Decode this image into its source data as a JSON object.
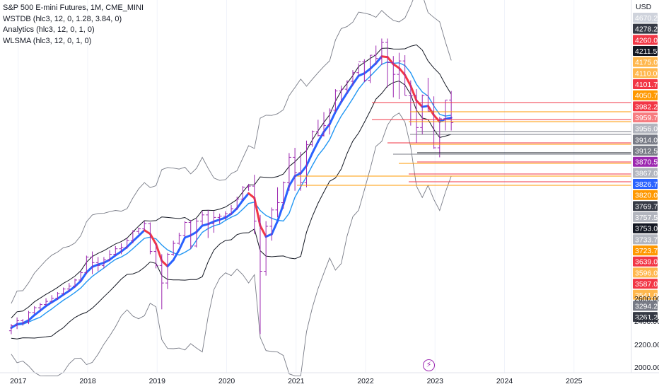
{
  "legend": {
    "symbol_line": "S&P 500 E-mini Futures, 1M, CME_MINI",
    "indicators": [
      "WSTDB (hlc3, 12, 0, 1.28, 3.84, 0)",
      "Analytics (hlc3, 12, 0, 1, 0)",
      "WLSMA (hlc3, 12, 0, 1, 0)"
    ]
  },
  "price_axis": {
    "currency": "USD",
    "ticks": [
      "2000.00",
      "2200.00",
      "2400.00",
      "2600.00"
    ]
  },
  "time_axis": {
    "ticks": [
      "2017",
      "2018",
      "2019",
      "2020",
      "2021",
      "2022",
      "2023",
      "2024",
      "2025"
    ]
  },
  "price_tags": [
    {
      "label": "4670.25",
      "bg": "#cfd3dc",
      "fg": "#ffffff"
    },
    {
      "label": "4278.25",
      "bg": "#363a45",
      "fg": "#ffffff"
    },
    {
      "label": "4260.00",
      "bg": "#f23645",
      "fg": "#ffffff"
    },
    {
      "label": "4211.50",
      "bg": "#131722",
      "fg": "#ffffff"
    },
    {
      "label": "4175.00",
      "bg": "#ffb74d",
      "fg": "#ffffff"
    },
    {
      "label": "4110.00",
      "bg": "#ffb74d",
      "fg": "#ffffff"
    },
    {
      "label": "4101.75",
      "bg": "#f23645",
      "fg": "#ffffff"
    },
    {
      "label": "4050.75",
      "bg": "#ff9800",
      "fg": "#ffffff"
    },
    {
      "label": "3982.25",
      "bg": "#f23645",
      "fg": "#ffffff"
    },
    {
      "label": "3959.75",
      "bg": "#f77c80",
      "fg": "#ffffff"
    },
    {
      "label": "3956.00",
      "bg": "#b2b5be",
      "fg": "#ffffff"
    },
    {
      "label": "3914.00",
      "bg": "#787b86",
      "fg": "#ffffff"
    },
    {
      "label": "3912.50",
      "bg": "#787b86",
      "fg": "#ffffff"
    },
    {
      "label": "3870.50",
      "bg": "#9c27b0",
      "fg": "#ffffff"
    },
    {
      "label": "3867.00",
      "bg": "#b2b5be",
      "fg": "#ffffff"
    },
    {
      "label": "3826.75",
      "bg": "#2962ff",
      "fg": "#ffffff"
    },
    {
      "label": "3820.00",
      "bg": "#ff9800",
      "fg": "#ffffff"
    },
    {
      "label": "3769.75",
      "bg": "#363a45",
      "fg": "#ffffff"
    },
    {
      "label": "3757.50",
      "bg": "#b2b5be",
      "fg": "#ffffff"
    },
    {
      "label": "3753.00",
      "bg": "#131722",
      "fg": "#ffffff"
    },
    {
      "label": "3733.75",
      "bg": "#b2b5be",
      "fg": "#ffffff"
    },
    {
      "label": "3723.75",
      "bg": "#ff9800",
      "fg": "#ffffff"
    },
    {
      "label": "3639.00",
      "bg": "#f23645",
      "fg": "#ffffff"
    },
    {
      "label": "3596.00",
      "bg": "#ffb74d",
      "fg": "#ffffff"
    },
    {
      "label": "3587.00",
      "bg": "#f23645",
      "fg": "#ffffff"
    },
    {
      "label": "3541.00",
      "bg": "#ffb74d",
      "fg": "#ffffff"
    },
    {
      "label": "3294.25",
      "bg": "#787b86",
      "fg": "#ffffff"
    },
    {
      "label": "3261.25",
      "bg": "#363a45",
      "fg": "#ffffff"
    }
  ],
  "event_icon": {
    "name": "lightning-bolt-icon",
    "glyph": "⚡"
  },
  "colors": {
    "bars": "#9c27b0",
    "wlsma_up": "#2962ff",
    "wlsma_down": "#f23645",
    "analytics": "#2196f3",
    "bands": "#131722",
    "bands_outer": "#787b86",
    "level_red": "#f23645",
    "level_orange": "#ff9800",
    "level_gray": "#787b86"
  },
  "chart_data": {
    "type": "ohlc",
    "title": "S&P 500 E-mini Futures, 1M, CME_MINI",
    "currency": "USD",
    "x_start": 2016.9,
    "x_step_years": 0.08333,
    "ohlc_bars": [
      {
        "o": 2200,
        "h": 2240,
        "l": 2180,
        "c": 2230
      },
      {
        "o": 2230,
        "h": 2280,
        "l": 2210,
        "c": 2260
      },
      {
        "o": 2260,
        "h": 2270,
        "l": 2230,
        "c": 2250
      },
      {
        "o": 2250,
        "h": 2320,
        "l": 2240,
        "c": 2310
      },
      {
        "o": 2310,
        "h": 2350,
        "l": 2300,
        "c": 2340
      },
      {
        "o": 2340,
        "h": 2370,
        "l": 2320,
        "c": 2360
      },
      {
        "o": 2360,
        "h": 2400,
        "l": 2350,
        "c": 2380
      },
      {
        "o": 2380,
        "h": 2420,
        "l": 2370,
        "c": 2400
      },
      {
        "o": 2400,
        "h": 2440,
        "l": 2390,
        "c": 2430
      },
      {
        "o": 2430,
        "h": 2470,
        "l": 2420,
        "c": 2460
      },
      {
        "o": 2460,
        "h": 2500,
        "l": 2440,
        "c": 2480
      },
      {
        "o": 2480,
        "h": 2530,
        "l": 2470,
        "c": 2520
      },
      {
        "o": 2520,
        "h": 2580,
        "l": 2510,
        "c": 2570
      },
      {
        "o": 2570,
        "h": 2690,
        "l": 2560,
        "c": 2680
      },
      {
        "o": 2680,
        "h": 2720,
        "l": 2560,
        "c": 2640
      },
      {
        "o": 2640,
        "h": 2680,
        "l": 2580,
        "c": 2620
      },
      {
        "o": 2620,
        "h": 2680,
        "l": 2600,
        "c": 2660
      },
      {
        "o": 2660,
        "h": 2730,
        "l": 2650,
        "c": 2700
      },
      {
        "o": 2700,
        "h": 2760,
        "l": 2690,
        "c": 2740
      },
      {
        "o": 2740,
        "h": 2780,
        "l": 2700,
        "c": 2750
      },
      {
        "o": 2750,
        "h": 2820,
        "l": 2740,
        "c": 2800
      },
      {
        "o": 2800,
        "h": 2880,
        "l": 2780,
        "c": 2870
      },
      {
        "o": 2870,
        "h": 2900,
        "l": 2850,
        "c": 2890
      },
      {
        "o": 2890,
        "h": 2950,
        "l": 2880,
        "c": 2930
      },
      {
        "o": 2930,
        "h": 2940,
        "l": 2700,
        "c": 2720
      },
      {
        "o": 2720,
        "h": 2780,
        "l": 2600,
        "c": 2620
      },
      {
        "o": 2620,
        "h": 2700,
        "l": 2330,
        "c": 2500
      },
      {
        "o": 2500,
        "h": 2710,
        "l": 2460,
        "c": 2700
      },
      {
        "o": 2700,
        "h": 2800,
        "l": 2690,
        "c": 2780
      },
      {
        "o": 2780,
        "h": 2860,
        "l": 2770,
        "c": 2840
      },
      {
        "o": 2840,
        "h": 2950,
        "l": 2830,
        "c": 2940
      },
      {
        "o": 2940,
        "h": 2960,
        "l": 2740,
        "c": 2760
      },
      {
        "o": 2760,
        "h": 2970,
        "l": 2750,
        "c": 2950
      },
      {
        "o": 2950,
        "h": 3030,
        "l": 2920,
        "c": 3000
      },
      {
        "o": 3000,
        "h": 3040,
        "l": 2820,
        "c": 2930
      },
      {
        "o": 2930,
        "h": 3030,
        "l": 2860,
        "c": 2980
      },
      {
        "o": 2980,
        "h": 3010,
        "l": 2930,
        "c": 2990
      },
      {
        "o": 2990,
        "h": 3030,
        "l": 2960,
        "c": 3010
      },
      {
        "o": 3010,
        "h": 3080,
        "l": 3000,
        "c": 3050
      },
      {
        "o": 3050,
        "h": 3150,
        "l": 3040,
        "c": 3130
      },
      {
        "o": 3130,
        "h": 3240,
        "l": 3120,
        "c": 3230
      },
      {
        "o": 3230,
        "h": 3260,
        "l": 3200,
        "c": 3240
      },
      {
        "o": 3240,
        "h": 3340,
        "l": 2850,
        "c": 2950
      },
      {
        "o": 2950,
        "h": 3000,
        "l": 2180,
        "c": 2580
      },
      {
        "o": 2580,
        "h": 2950,
        "l": 2550,
        "c": 2910
      },
      {
        "o": 2910,
        "h": 3060,
        "l": 2800,
        "c": 3040
      },
      {
        "o": 3040,
        "h": 3230,
        "l": 2980,
        "c": 3100
      },
      {
        "o": 3100,
        "h": 3280,
        "l": 3050,
        "c": 3270
      },
      {
        "o": 3270,
        "h": 3540,
        "l": 3200,
        "c": 3500
      },
      {
        "o": 3500,
        "h": 3590,
        "l": 3200,
        "c": 3360
      },
      {
        "o": 3360,
        "h": 3550,
        "l": 3200,
        "c": 3270
      },
      {
        "o": 3270,
        "h": 3660,
        "l": 3230,
        "c": 3620
      },
      {
        "o": 3620,
        "h": 3760,
        "l": 3600,
        "c": 3750
      },
      {
        "o": 3750,
        "h": 3870,
        "l": 3700,
        "c": 3710
      },
      {
        "o": 3710,
        "h": 3950,
        "l": 3700,
        "c": 3810
      },
      {
        "o": 3810,
        "h": 3990,
        "l": 3720,
        "c": 3970
      },
      {
        "o": 3970,
        "h": 4200,
        "l": 3950,
        "c": 4180
      },
      {
        "o": 4180,
        "h": 4240,
        "l": 4050,
        "c": 4200
      },
      {
        "o": 4200,
        "h": 4300,
        "l": 4150,
        "c": 4290
      },
      {
        "o": 4290,
        "h": 4420,
        "l": 4240,
        "c": 4390
      },
      {
        "o": 4390,
        "h": 4500,
        "l": 4350,
        "c": 4520
      },
      {
        "o": 4520,
        "h": 4550,
        "l": 4280,
        "c": 4300
      },
      {
        "o": 4300,
        "h": 4600,
        "l": 4270,
        "c": 4600
      },
      {
        "o": 4600,
        "h": 4720,
        "l": 4480,
        "c": 4560
      },
      {
        "o": 4560,
        "h": 4810,
        "l": 4480,
        "c": 4760
      },
      {
        "o": 4760,
        "h": 4810,
        "l": 4220,
        "c": 4510
      },
      {
        "o": 4510,
        "h": 4590,
        "l": 4110,
        "c": 4370
      },
      {
        "o": 4370,
        "h": 4630,
        "l": 4090,
        "c": 4530
      },
      {
        "o": 4530,
        "h": 4600,
        "l": 4130,
        "c": 4130
      },
      {
        "o": 4130,
        "h": 4300,
        "l": 3810,
        "c": 4130
      },
      {
        "o": 4130,
        "h": 4200,
        "l": 3640,
        "c": 3790
      },
      {
        "o": 3790,
        "h": 4140,
        "l": 3720,
        "c": 4130
      },
      {
        "o": 4130,
        "h": 4330,
        "l": 3960,
        "c": 3960
      },
      {
        "o": 3960,
        "h": 4120,
        "l": 3580,
        "c": 3590
      },
      {
        "o": 3590,
        "h": 3900,
        "l": 3500,
        "c": 3880
      },
      {
        "o": 3880,
        "h": 4080,
        "l": 3760,
        "c": 4080
      },
      {
        "o": 4080,
        "h": 4180,
        "l": 3760,
        "c": 3840
      }
    ],
    "levels": [
      {
        "value": 3982.25,
        "color": "#f23645"
      },
      {
        "value": 3959.75,
        "color": "#ff9800"
      },
      {
        "value": 3914.0,
        "color": "#f23645"
      },
      {
        "value": 3912.5,
        "color": "#ff9800"
      },
      {
        "value": 3870.5,
        "color": "#787b86"
      },
      {
        "value": 3867.0,
        "color": "#787b86"
      },
      {
        "value": 3826.75,
        "color": "#f23645"
      },
      {
        "value": 3820.0,
        "color": "#ff9800"
      },
      {
        "value": 3769.75,
        "color": "#131722"
      },
      {
        "value": 3757.5,
        "color": "#787b86"
      },
      {
        "value": 3733.75,
        "color": "#f23645"
      },
      {
        "value": 3723.75,
        "color": "#ff9800"
      },
      {
        "value": 3639.0,
        "color": "#f23645"
      },
      {
        "value": 3596.0,
        "color": "#ff9800"
      },
      {
        "value": 3587.0,
        "color": "#f23645"
      },
      {
        "value": 3541.0,
        "color": "#ff9800"
      }
    ]
  }
}
